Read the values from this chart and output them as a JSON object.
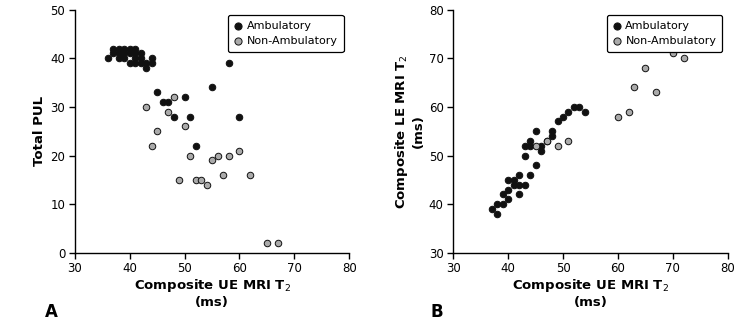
{
  "plot_A": {
    "ambulatory_x": [
      36,
      37,
      37,
      38,
      38,
      38,
      39,
      39,
      39,
      40,
      40,
      40,
      41,
      41,
      41,
      41,
      42,
      42,
      42,
      43,
      43,
      44,
      44,
      45,
      46,
      47,
      48,
      50,
      51,
      52,
      55,
      58,
      60
    ],
    "ambulatory_y": [
      40,
      42,
      41,
      42,
      41,
      40,
      42,
      41,
      40,
      42,
      41,
      39,
      42,
      41,
      40,
      39,
      41,
      40,
      39,
      39,
      38,
      40,
      39,
      33,
      31,
      31,
      28,
      32,
      28,
      22,
      34,
      39,
      28
    ],
    "non_ambulatory_x": [
      43,
      44,
      45,
      47,
      48,
      49,
      50,
      51,
      52,
      53,
      54,
      55,
      56,
      57,
      58,
      60,
      62,
      65,
      67
    ],
    "non_ambulatory_y": [
      30,
      22,
      25,
      29,
      32,
      15,
      26,
      20,
      15,
      15,
      14,
      19,
      20,
      16,
      20,
      21,
      16,
      2,
      2
    ],
    "xlim": [
      30,
      80
    ],
    "ylim": [
      0,
      50
    ],
    "xticks": [
      30,
      40,
      50,
      60,
      70,
      80
    ],
    "yticks": [
      0,
      10,
      20,
      30,
      40,
      50
    ],
    "label": "A"
  },
  "plot_B": {
    "ambulatory_x": [
      37,
      38,
      38,
      39,
      39,
      40,
      40,
      40,
      41,
      41,
      42,
      42,
      42,
      43,
      43,
      43,
      44,
      44,
      44,
      45,
      45,
      46,
      46,
      47,
      48,
      48,
      49,
      50,
      51,
      52,
      53,
      54
    ],
    "ambulatory_y": [
      39,
      40,
      38,
      42,
      40,
      45,
      43,
      41,
      45,
      44,
      46,
      44,
      42,
      52,
      50,
      44,
      53,
      52,
      46,
      55,
      48,
      52,
      51,
      53,
      55,
      54,
      57,
      58,
      59,
      60,
      60,
      59
    ],
    "non_ambulatory_x": [
      45,
      47,
      49,
      51,
      60,
      62,
      63,
      65,
      67,
      70,
      72
    ],
    "non_ambulatory_y": [
      52,
      53,
      52,
      53,
      58,
      59,
      64,
      68,
      63,
      71,
      70
    ],
    "xlim": [
      30,
      80
    ],
    "ylim": [
      30,
      80
    ],
    "xticks": [
      30,
      40,
      50,
      60,
      70,
      80
    ],
    "yticks": [
      30,
      40,
      50,
      60,
      70,
      80
    ],
    "label": "B"
  },
  "legend_ambulatory": "Ambulatory",
  "legend_non_ambulatory": "Non-Ambulatory",
  "dot_color_ambulatory": "#111111",
  "dot_color_non_ambulatory": "#aaaaaa",
  "dot_size": 22,
  "dot_linewidth": 0.7,
  "background_color": "#ffffff",
  "xlabel_common": "Composite UE MRI T$_2$\n(ms)",
  "ylabel_A": "Total PUL",
  "ylabel_B": "Composite LE MRI T$_2$\n(ms)"
}
